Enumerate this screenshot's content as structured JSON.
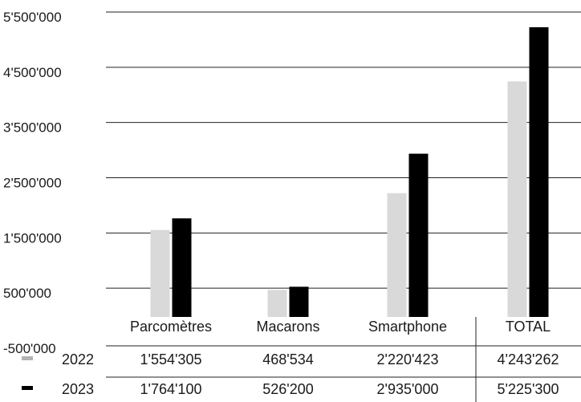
{
  "chart_data": {
    "type": "bar",
    "title": "",
    "xlabel": "",
    "ylabel": "",
    "ylim": [
      -500000,
      5500000
    ],
    "yticks": [
      "5'500'000",
      "4'500'000",
      "3'500'000",
      "2'500'000",
      "1'500'000",
      "500'000",
      "-500'000"
    ],
    "ytick_values": [
      5500000,
      4500000,
      3500000,
      2500000,
      1500000,
      500000,
      -500000
    ],
    "grid": true,
    "legend": "table-left",
    "categories": [
      "Parcomètres",
      "Macarons",
      "Smartphone",
      "TOTAL"
    ],
    "series": [
      {
        "name": "2022",
        "color": "#d9d9d9",
        "legend_color": "#b3b3b3",
        "values": [
          1554305,
          468534,
          2220423,
          4243262
        ],
        "labels": [
          "1'554'305",
          "468'534",
          "2'220'423",
          "4'243'262"
        ]
      },
      {
        "name": "2023",
        "color": "#000000",
        "legend_color": "#000000",
        "values": [
          1764100,
          526200,
          2935000,
          5225300
        ],
        "labels": [
          "1'764'100",
          "526'200",
          "2'935'000",
          "5'225'300"
        ]
      }
    ]
  }
}
